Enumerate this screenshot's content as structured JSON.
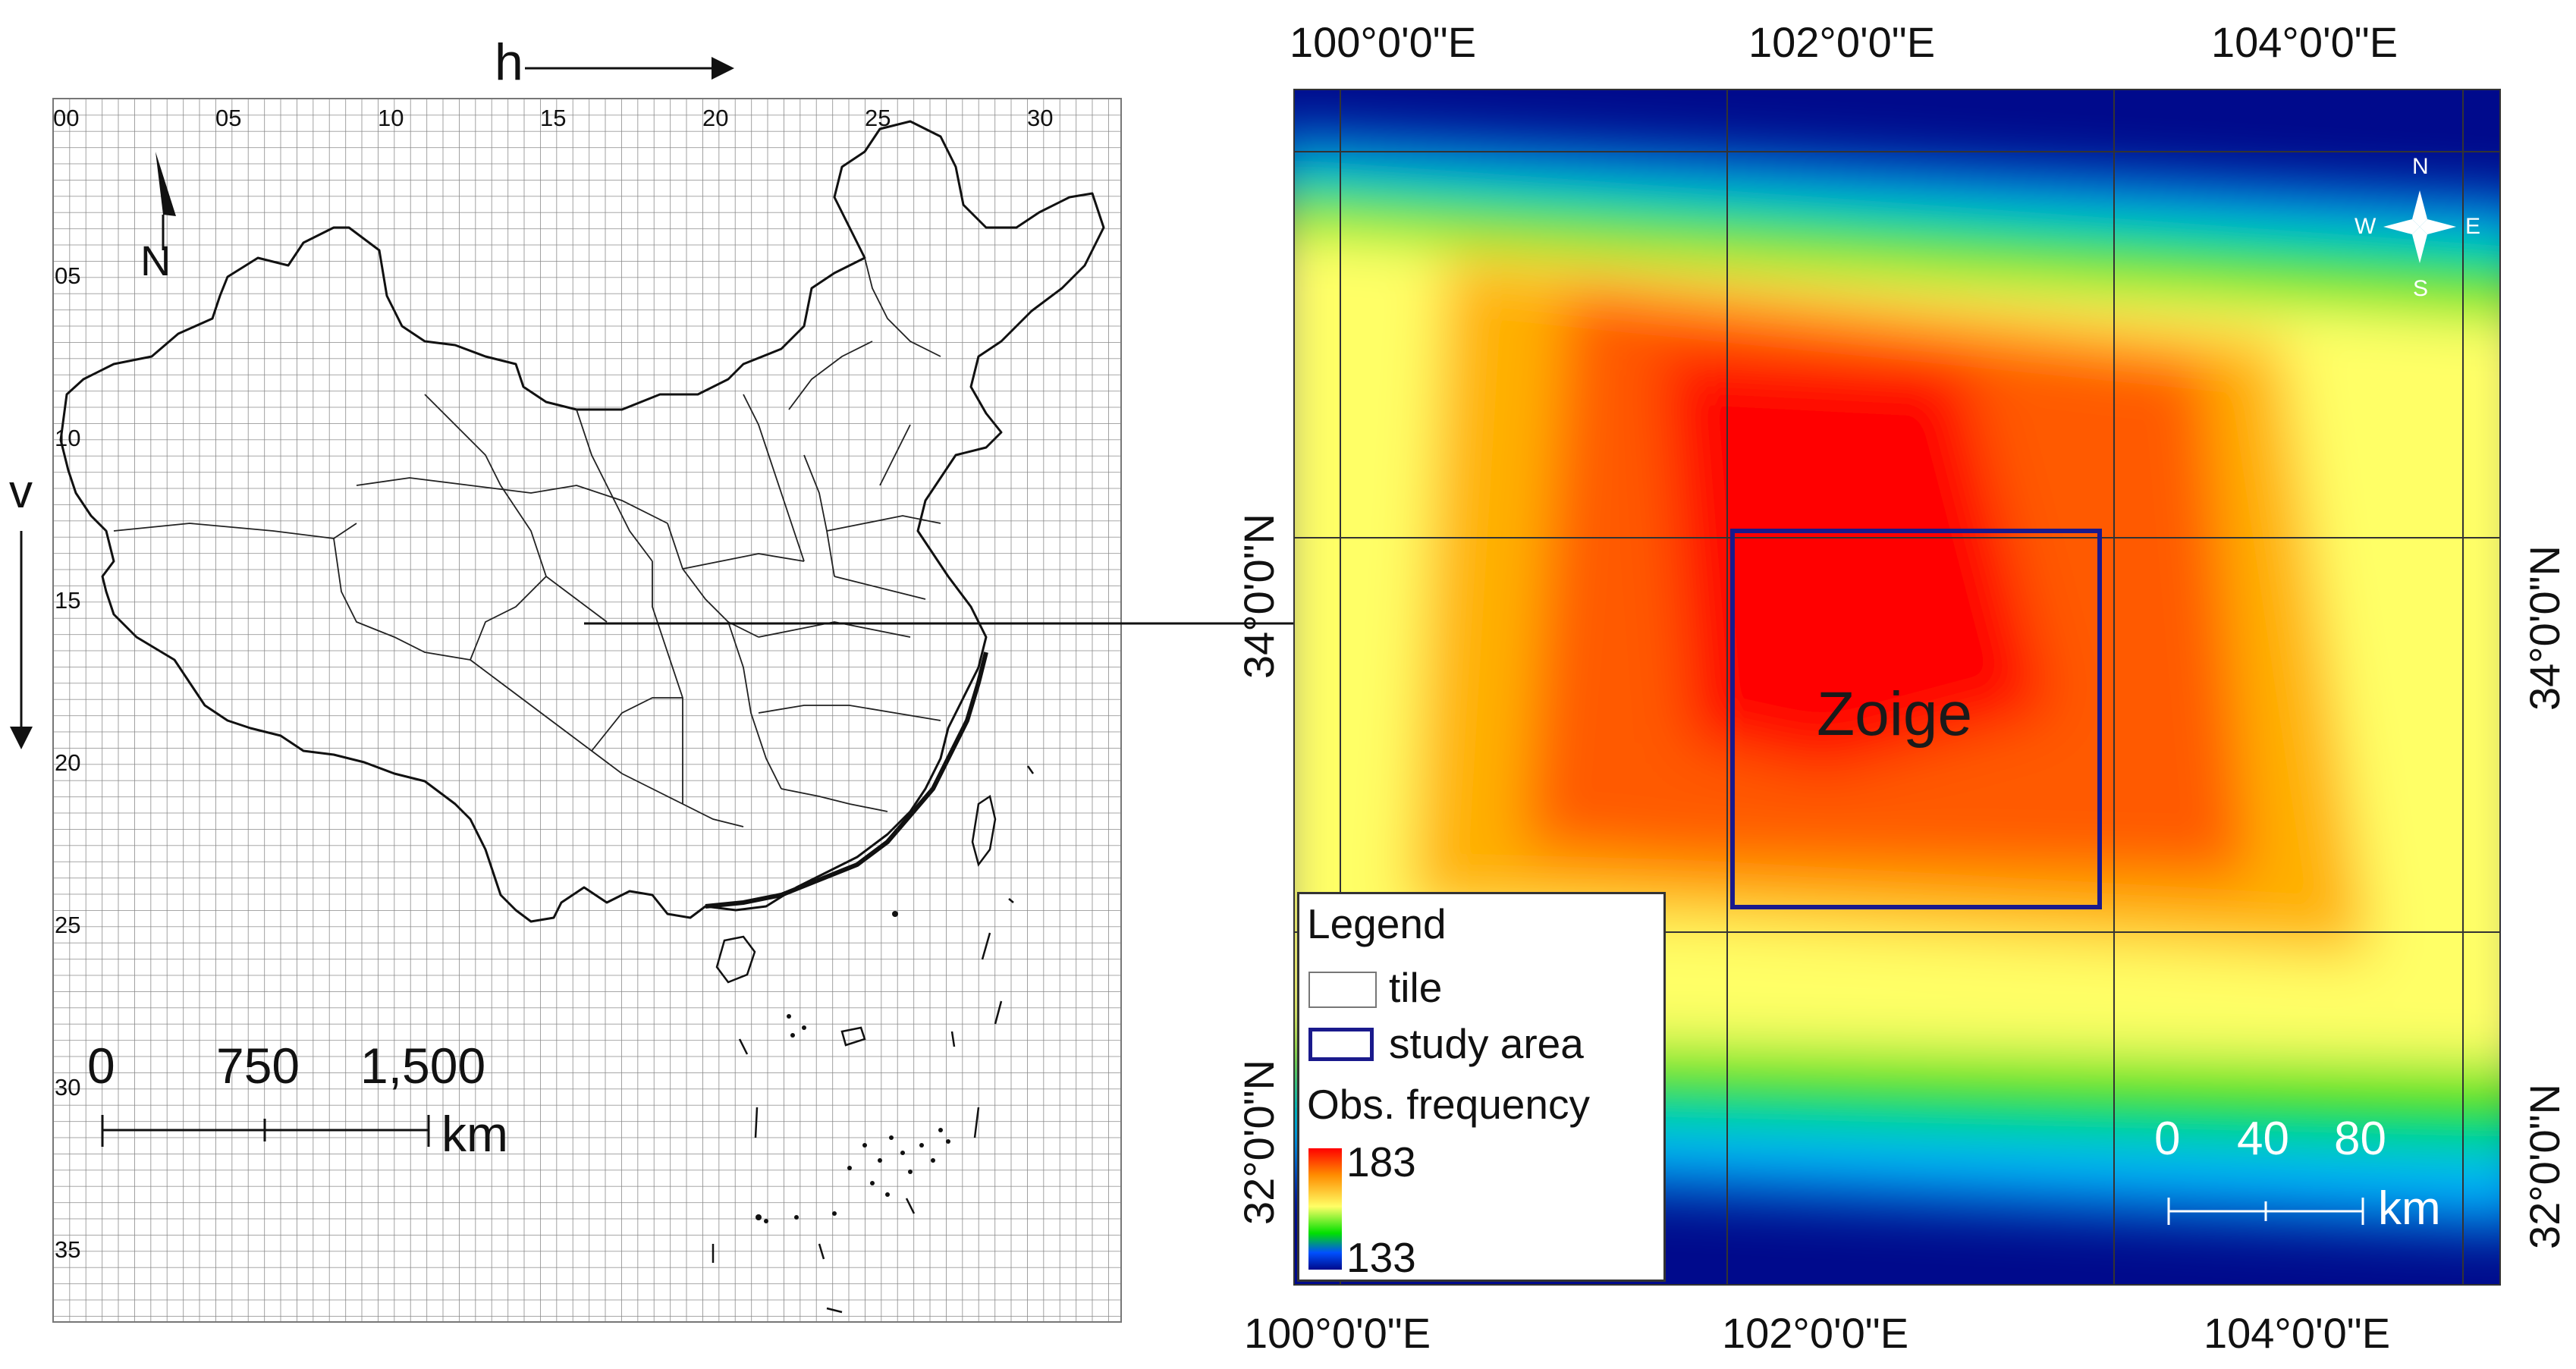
{
  "left_map": {
    "h_label": "h",
    "v_label": "v",
    "north_label": "N",
    "h_ticks": [
      "00",
      "05",
      "10",
      "15",
      "20",
      "25",
      "30"
    ],
    "v_ticks": [
      "05",
      "10",
      "15",
      "20",
      "25",
      "30",
      "35"
    ],
    "scale": {
      "labels": [
        "0",
        "750",
        "1,500"
      ],
      "unit": "km"
    }
  },
  "right_map": {
    "top_lon_labels": [
      "100°0'0\"E",
      "102°0'0\"E",
      "104°0'0\"E"
    ],
    "bottom_lon_labels": [
      "100°0'0\"E",
      "102°0'0\"E",
      "104°0'0\"E"
    ],
    "left_lat_labels": [
      "34°0'0\"N",
      "32°0'0\"N"
    ],
    "right_lat_labels": [
      "34°0'0\"N",
      "32°0'0\"N"
    ],
    "compass": {
      "n": "N",
      "s": "S",
      "e": "E",
      "w": "W"
    },
    "study_area_name": "Zoige",
    "scale": {
      "labels": [
        "0",
        "40",
        "80"
      ],
      "unit": "km"
    },
    "legend": {
      "title": "Legend",
      "tile": "tile",
      "study_area": "study area",
      "frequency_title": "Obs. frequency",
      "max": "183",
      "min": "133"
    },
    "colors": {
      "high": "#ff0000",
      "mid": "#ffff66",
      "low": "#00e000",
      "lowest": "#000a8c",
      "study_area_outline": "#1a1a8c"
    }
  }
}
